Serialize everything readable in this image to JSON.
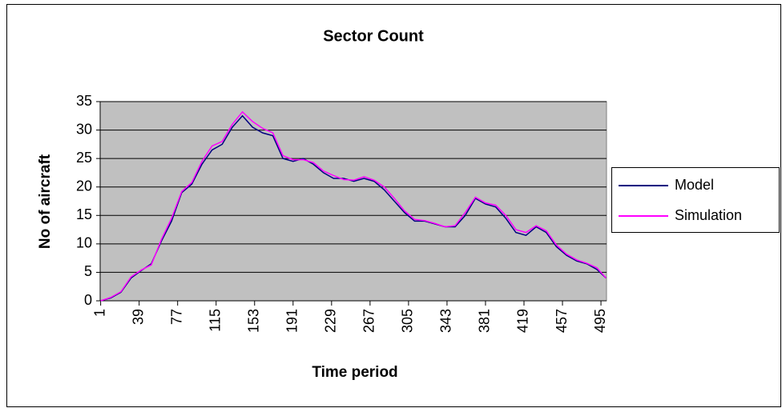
{
  "chart_data": {
    "type": "line",
    "title": "Sector Count",
    "x_label": "Time period",
    "y_label": "No of aircraft",
    "x": [
      1,
      11,
      21,
      31,
      41,
      51,
      61,
      71,
      81,
      91,
      101,
      111,
      121,
      131,
      141,
      151,
      161,
      171,
      181,
      191,
      201,
      211,
      221,
      231,
      241,
      251,
      261,
      271,
      281,
      291,
      301,
      311,
      321,
      331,
      341,
      351,
      361,
      371,
      381,
      391,
      401,
      411,
      421,
      431,
      441,
      451,
      461,
      471,
      481,
      491,
      500
    ],
    "series": [
      {
        "name": "Model",
        "color": "#000080",
        "values": [
          0,
          0.5,
          1.5,
          4,
          5.3,
          6.5,
          10.5,
          14,
          19,
          20.5,
          24,
          26.5,
          27.5,
          30.5,
          32.5,
          30.5,
          29.5,
          29,
          25,
          24.5,
          25,
          24,
          22.5,
          21.5,
          21.5,
          21,
          21.5,
          21,
          19.5,
          17.5,
          15.5,
          14,
          14,
          13.5,
          13,
          13,
          15,
          18,
          17,
          16.5,
          14.5,
          12,
          11.5,
          13,
          12,
          9.5,
          8,
          7,
          6.5,
          5.5,
          4
        ]
      },
      {
        "name": "Simulation",
        "color": "#FF00FF",
        "values": [
          0,
          0.6,
          1.6,
          4.2,
          5.4,
          6.3,
          10.8,
          14.5,
          19.2,
          20.8,
          24.5,
          27.2,
          28,
          31,
          33.2,
          31.5,
          30.3,
          29.5,
          25.5,
          24.8,
          24.8,
          24.3,
          22.8,
          22,
          21.3,
          21.2,
          21.8,
          21.2,
          20,
          18,
          15.8,
          14.3,
          14.1,
          13.6,
          13,
          13.2,
          15.5,
          18.2,
          17.2,
          16.8,
          15,
          12.5,
          12,
          13.2,
          12.3,
          9.8,
          8.2,
          7.2,
          6.6,
          5.8,
          4
        ]
      }
    ],
    "xlim": [
      0.5,
      500.5
    ],
    "xticks": [
      1,
      39,
      77,
      115,
      153,
      191,
      229,
      267,
      305,
      343,
      381,
      419,
      457,
      495
    ],
    "ylim": [
      0,
      35
    ],
    "yticks": [
      0,
      5,
      10,
      15,
      20,
      25,
      30,
      35
    ],
    "grid": true,
    "legend": "right",
    "background": "#C0C0C0"
  }
}
